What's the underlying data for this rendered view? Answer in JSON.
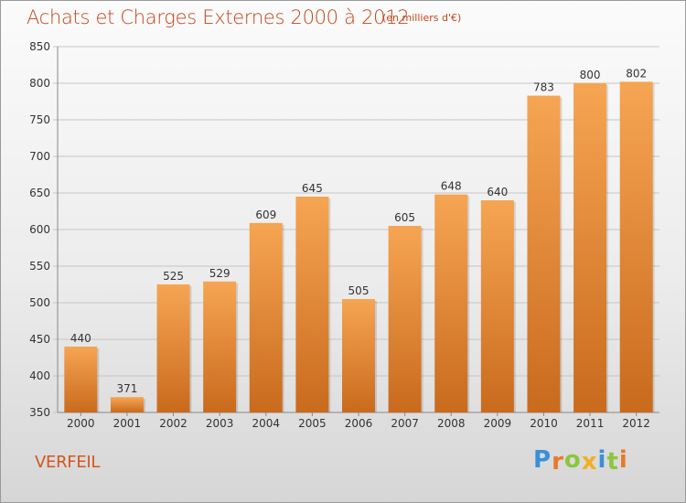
{
  "header": {
    "title": "Achats et Charges Externes 2000 à 2012",
    "unit": "(en milliers d'€)"
  },
  "footer": {
    "commune": "VERFEIL",
    "logo_letters": [
      "P",
      "r",
      "o",
      "x",
      "i",
      "t",
      "i"
    ],
    "logo_colors": [
      "#3a8fd8",
      "#e8782a",
      "#8cc63f",
      "#f2b01e",
      "#3a8fd8",
      "#8cc63f",
      "#e8782a"
    ]
  },
  "colors": {
    "bar_light": "#f6a553",
    "bar_dark": "#c96a1d",
    "grid": "#c6c6c6",
    "title": "#c0461a"
  },
  "chart_data": {
    "type": "bar",
    "title": "Achats et Charges Externes 2000 à 2012",
    "subtitle": "(en milliers d'€)",
    "categories": [
      "2000",
      "2001",
      "2002",
      "2003",
      "2004",
      "2005",
      "2006",
      "2007",
      "2008",
      "2009",
      "2010",
      "2011",
      "2012"
    ],
    "values": [
      440,
      371,
      525,
      529,
      609,
      645,
      505,
      605,
      648,
      640,
      783,
      800,
      802
    ],
    "ylim": [
      350,
      850
    ],
    "yticks": [
      "350",
      "400",
      "450",
      "500",
      "550",
      "600",
      "650",
      "700",
      "750",
      "800",
      "850"
    ],
    "grid": "horizontal",
    "legend": "none"
  }
}
